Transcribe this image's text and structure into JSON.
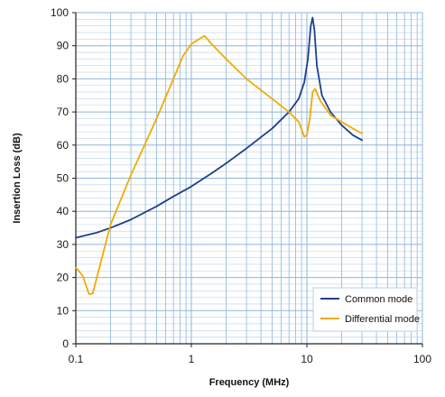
{
  "chart_data": {
    "type": "line",
    "title": "",
    "xlabel": "Frequency (MHz)",
    "ylabel": "Insertion Loss (dB)",
    "x_scale": "log",
    "xlim": [
      0.1,
      100
    ],
    "ylim": [
      0,
      100
    ],
    "x_ticks": [
      0.1,
      1,
      10,
      100
    ],
    "x_tick_labels": [
      "0.1",
      "1",
      "10",
      "100"
    ],
    "y_ticks": [
      0,
      10,
      20,
      30,
      40,
      50,
      60,
      70,
      80,
      90,
      100
    ],
    "y_tick_labels": [
      "0",
      "10",
      "20",
      "30",
      "40",
      "50",
      "60",
      "70",
      "80",
      "90",
      "100"
    ],
    "grid": true,
    "legend": "bottom-right",
    "colors": {
      "grid": "#8db5dd",
      "axis": "#222222",
      "common": "#1f3f88",
      "differential": "#f0ab00"
    },
    "series": [
      {
        "name": "Common mode",
        "color": "#1f3f88",
        "points": [
          [
            0.1,
            32
          ],
          [
            0.15,
            33.5
          ],
          [
            0.2,
            35
          ],
          [
            0.3,
            37.5
          ],
          [
            0.5,
            41.5
          ],
          [
            0.7,
            44.5
          ],
          [
            1.0,
            47.5
          ],
          [
            1.5,
            51.5
          ],
          [
            2.0,
            54.5
          ],
          [
            3.0,
            59
          ],
          [
            5.0,
            65
          ],
          [
            7.0,
            70
          ],
          [
            8.5,
            74
          ],
          [
            9.5,
            79
          ],
          [
            10.2,
            86
          ],
          [
            10.8,
            96
          ],
          [
            11.2,
            98.5
          ],
          [
            11.6,
            95
          ],
          [
            12.2,
            84
          ],
          [
            13.5,
            75
          ],
          [
            16,
            70
          ],
          [
            20,
            66
          ],
          [
            25,
            63
          ],
          [
            30,
            61.5
          ]
        ]
      },
      {
        "name": "Differential mode",
        "color": "#f0ab00",
        "points": [
          [
            0.1,
            23
          ],
          [
            0.115,
            20.5
          ],
          [
            0.13,
            15
          ],
          [
            0.14,
            15.2
          ],
          [
            0.16,
            23
          ],
          [
            0.2,
            36
          ],
          [
            0.3,
            51
          ],
          [
            0.5,
            68
          ],
          [
            0.7,
            80
          ],
          [
            0.85,
            87
          ],
          [
            1.0,
            90.5
          ],
          [
            1.2,
            92.3
          ],
          [
            1.3,
            93
          ],
          [
            1.5,
            90.5
          ],
          [
            2.0,
            86
          ],
          [
            3.0,
            80
          ],
          [
            5.0,
            74
          ],
          [
            7.0,
            70
          ],
          [
            8.5,
            67
          ],
          [
            9.5,
            62.5
          ],
          [
            10.0,
            63
          ],
          [
            10.6,
            68
          ],
          [
            11.2,
            76
          ],
          [
            11.8,
            77
          ],
          [
            13.0,
            73.5
          ],
          [
            16,
            69
          ],
          [
            20,
            67
          ],
          [
            25,
            65
          ],
          [
            30,
            63.5
          ]
        ]
      }
    ]
  }
}
